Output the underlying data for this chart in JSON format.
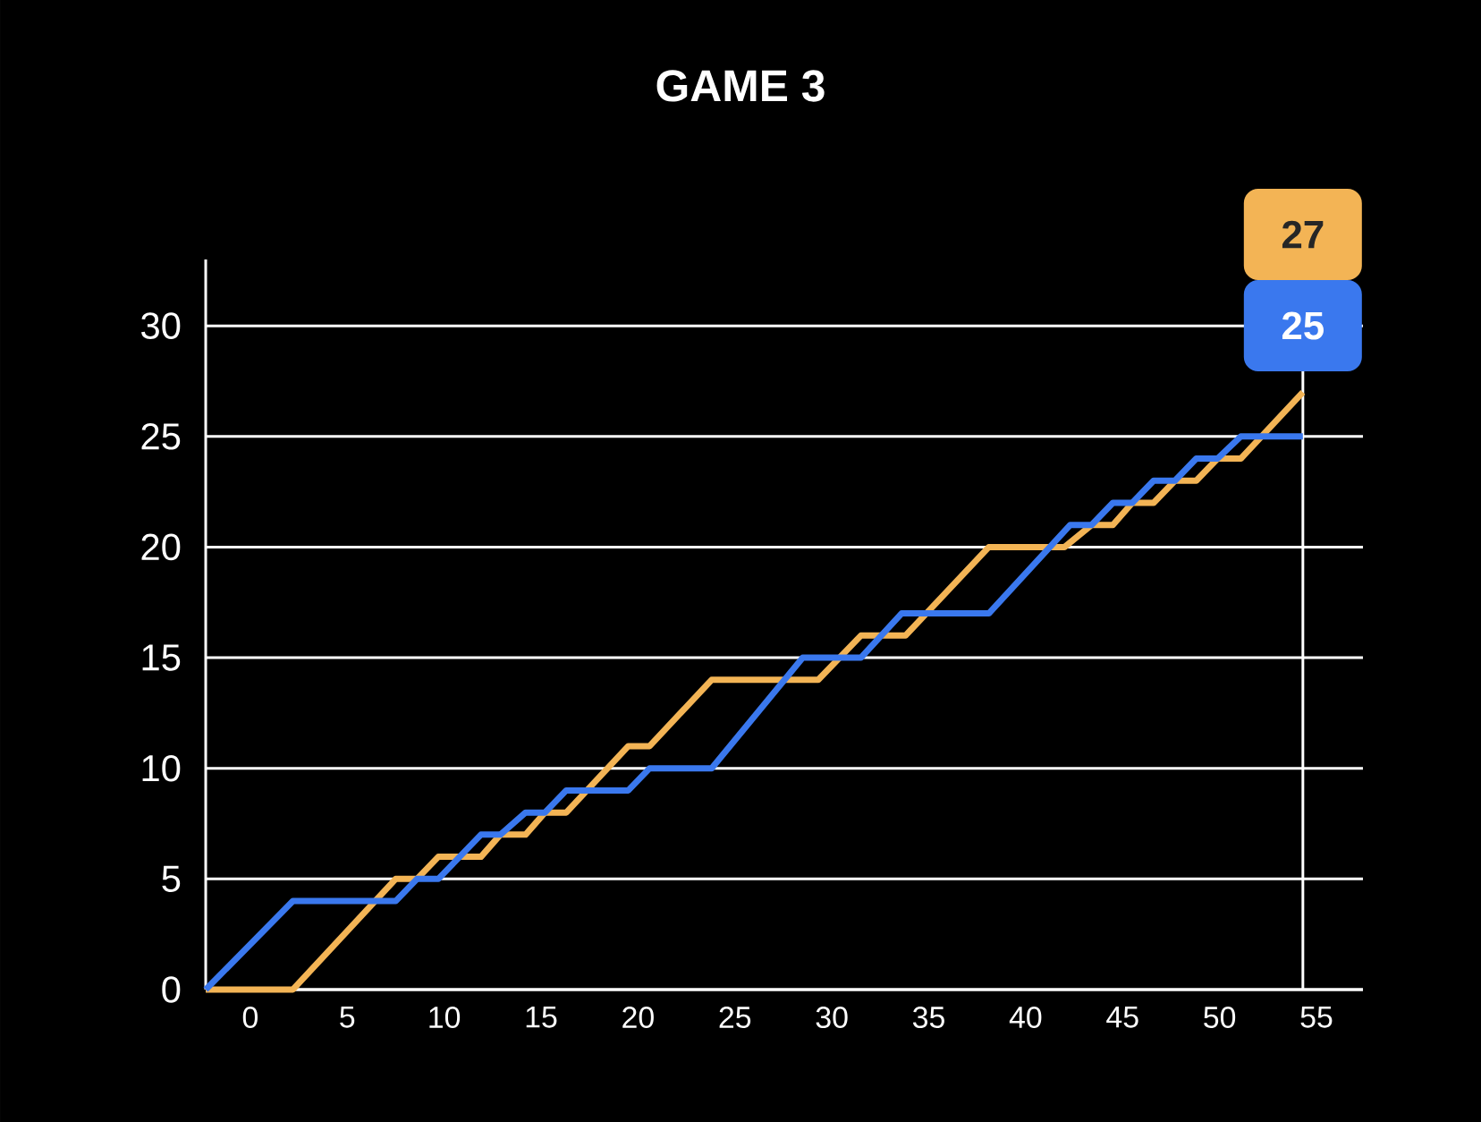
{
  "chart_data": {
    "type": "line",
    "title": "GAME 3",
    "xlim": [
      -2.3,
      57.4
    ],
    "ylim": [
      0,
      33
    ],
    "xticks": [
      0,
      5,
      10,
      15,
      20,
      25,
      30,
      35,
      40,
      45,
      50,
      55
    ],
    "yticks": [
      0,
      5,
      10,
      15,
      20,
      25,
      30
    ],
    "grid": "y",
    "series": [
      {
        "color": "#f3b455",
        "x": [
          -2.3,
          2.2,
          7.5,
          8.6,
          9.7,
          11.9,
          12.9,
          14.2,
          15.2,
          16.3,
          19.5,
          20.6,
          23.8,
          29.3,
          31.5,
          33.8,
          38.1,
          42.0,
          43.4,
          44.5,
          45.5,
          46.6,
          47.7,
          48.8,
          49.9,
          51.1,
          54.3
        ],
        "values": [
          0,
          0,
          5,
          5,
          6,
          6,
          7,
          7,
          8,
          8,
          11,
          11,
          14,
          14,
          16,
          16,
          20,
          20,
          21,
          21,
          22,
          22,
          23,
          23,
          24,
          24,
          27
        ]
      },
      {
        "color": "#3a78ee",
        "x": [
          -2.3,
          2.2,
          7.5,
          8.6,
          9.7,
          11.9,
          12.9,
          14.2,
          15.2,
          16.3,
          19.5,
          20.6,
          23.8,
          28.5,
          29.2,
          31.5,
          33.6,
          38.1,
          42.3,
          43.4,
          44.5,
          45.5,
          46.6,
          47.7,
          48.8,
          49.9,
          51.1,
          54.3
        ],
        "values": [
          0,
          4,
          4,
          5,
          5,
          7,
          7,
          8,
          8,
          9,
          9,
          10,
          10,
          15,
          15,
          15,
          17,
          17,
          21,
          21,
          22,
          22,
          23,
          23,
          24,
          24,
          25,
          25
        ]
      }
    ],
    "ref_lines": [
      {
        "axis": "x",
        "value": 54.3,
        "color": "#ffffff"
      }
    ],
    "annotations": [
      "27",
      "25"
    ]
  }
}
